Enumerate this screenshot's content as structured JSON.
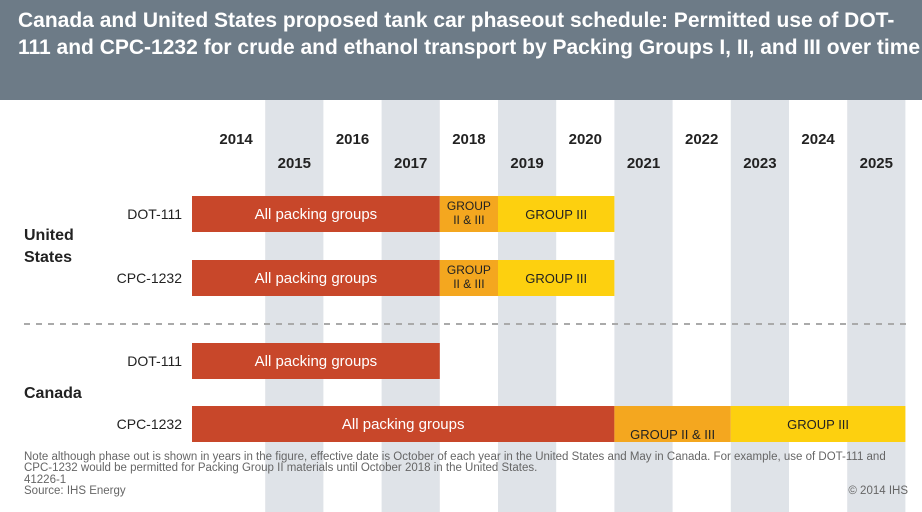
{
  "chart_data": {
    "type": "gantt",
    "title": "Canada and United States proposed tank car phaseout schedule: Permitted use of DOT-111 and CPC-1232 for crude and ethanol transport by Packing Groups I, II, and III over time",
    "categories": [
      2014,
      2015,
      2016,
      2017,
      2018,
      2019,
      2020,
      2021,
      2022,
      2023,
      2024,
      2025
    ],
    "groups": [
      {
        "name": "United States",
        "rows": [
          {
            "name": "DOT-111",
            "bars": [
              {
                "label": "All packing groups",
                "start": 2014,
                "end": 2017,
                "color": "#c8472a"
              },
              {
                "label_lines": [
                  "GROUP",
                  "II & III"
                ],
                "start": 2018,
                "end": 2018,
                "color": "#f4a71f"
              },
              {
                "label": "GROUP III",
                "start": 2019,
                "end": 2020,
                "color": "#fdd00f"
              }
            ]
          },
          {
            "name": "CPC-1232",
            "bars": [
              {
                "label": "All packing groups",
                "start": 2014,
                "end": 2017,
                "color": "#c8472a"
              },
              {
                "label_lines": [
                  "GROUP",
                  "II & III"
                ],
                "start": 2018,
                "end": 2018,
                "color": "#f4a71f"
              },
              {
                "label": "GROUP III",
                "start": 2019,
                "end": 2020,
                "color": "#fdd00f"
              }
            ]
          }
        ]
      },
      {
        "name": "Canada",
        "rows": [
          {
            "name": "DOT-111",
            "bars": [
              {
                "label": "All packing groups",
                "start": 2014,
                "end": 2017,
                "color": "#c8472a"
              }
            ]
          },
          {
            "name": "CPC-1232",
            "bars": [
              {
                "label": "All packing groups",
                "start": 2014,
                "end": 2020,
                "color": "#c8472a"
              },
              {
                "label": "GROUP II & III",
                "start": 2021,
                "end": 2022,
                "color": "#f4a71f"
              },
              {
                "label": "GROUP III",
                "start": 2023,
                "end": 2025,
                "color": "#fdd00f"
              }
            ]
          }
        ]
      }
    ],
    "note": "Note although phase out is shown in years in the figure, effective date is October of each year in the United States and May in Canada. For example, use of DOT-111 and CPC-1232 would be permitted for Packing Group II materials until October 2018 in the United States.",
    "code": "41226-1",
    "source": "Source: IHS Energy",
    "copyright": "© 2014 IHS"
  }
}
